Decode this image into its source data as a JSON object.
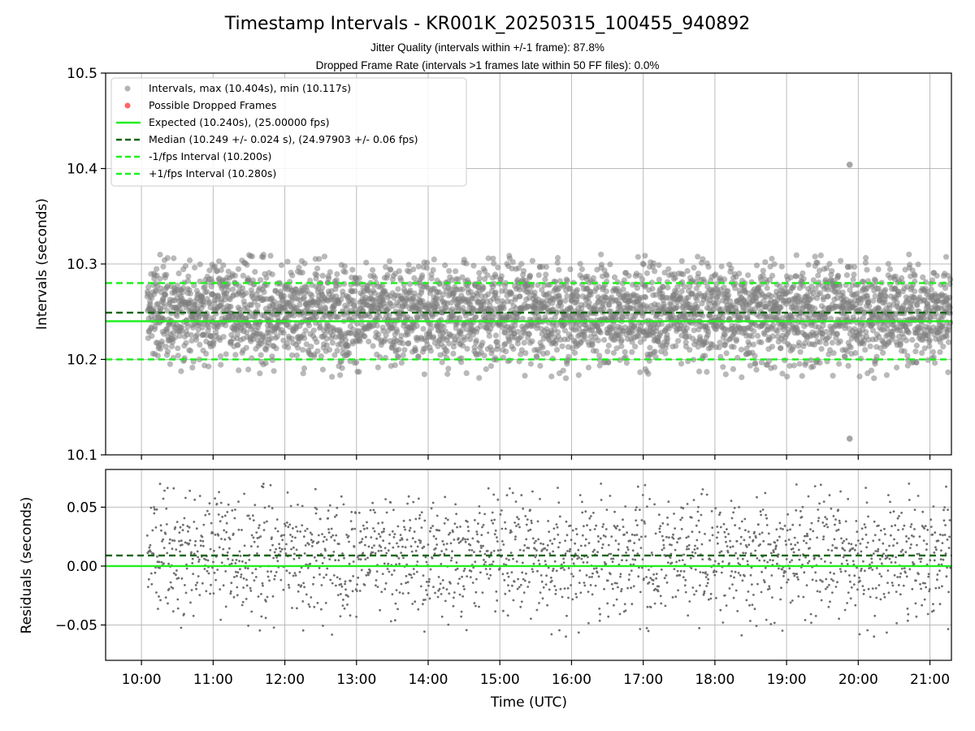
{
  "chart_data": {
    "type": "scatter",
    "title": "Timestamp Intervals - KR001K_20250315_100455_940892",
    "subtitle_lines": [
      "Jitter Quality (intervals within +/-1 frame): 87.8%",
      "Dropped Frame Rate (intervals >1 frames late within 50 FF files): 0.0%"
    ],
    "xlabel": "Time (UTC)",
    "x_tick_labels": [
      "10:00",
      "11:00",
      "12:00",
      "13:00",
      "14:00",
      "15:00",
      "16:00",
      "17:00",
      "18:00",
      "19:00",
      "20:00",
      "21:00"
    ],
    "x_range_hours": [
      9.5,
      21.3
    ],
    "data_x_range_hours": [
      10.08,
      21.3
    ],
    "top_panel": {
      "ylabel": "Intervals (seconds)",
      "ylim": [
        10.1,
        10.5
      ],
      "y_ticks": [
        "10.1",
        "10.2",
        "10.3",
        "10.4",
        "10.5"
      ],
      "y_tick_values": [
        10.1,
        10.2,
        10.3,
        10.4,
        10.5
      ],
      "max_interval": 10.404,
      "min_interval": 10.117,
      "outliers": [
        {
          "x_hours": 19.88,
          "y": 10.404
        },
        {
          "x_hours": 19.88,
          "y": 10.117
        }
      ],
      "scatter_spread": [
        10.18,
        10.31
      ],
      "expected": 10.24,
      "median": 10.249,
      "minus_fps_interval": 10.2,
      "plus_fps_interval": 10.28
    },
    "bottom_panel": {
      "ylabel": "Residuals (seconds)",
      "ylim": [
        -0.08,
        0.082
      ],
      "y_ticks": [
        "−0.05",
        "0.00",
        "0.05"
      ],
      "y_tick_values": [
        -0.05,
        0.0,
        0.05
      ],
      "zero_line": 0.0,
      "median_residual": 0.009,
      "residual_spread": [
        -0.063,
        0.075
      ]
    },
    "legend": {
      "placement": "top-left",
      "entries": [
        {
          "label": "Intervals, max (10.404s), min (10.117s)",
          "marker": "circle",
          "color": "#808080"
        },
        {
          "label": "Possible Dropped Frames",
          "marker": "circle",
          "color": "#ff6666"
        },
        {
          "label": "Expected (10.240s), (25.00000 fps)",
          "marker": "solid-line",
          "color": "#22ee22"
        },
        {
          "label": "Median (10.249 +/- 0.024 s), (24.97903 +/- 0.06 fps)",
          "marker": "dashed-line",
          "color": "#116611"
        },
        {
          "label": "-1/fps Interval (10.200s)",
          "marker": "dashed-line",
          "color": "#22ee22"
        },
        {
          "label": "+1/fps Interval (10.280s)",
          "marker": "dashed-line",
          "color": "#22ee22"
        }
      ]
    },
    "colors": {
      "points": "#808080",
      "expected": "#22ee22",
      "median": "#116611",
      "fps_bounds": "#22ee22",
      "dropped": "#ff6666"
    }
  }
}
